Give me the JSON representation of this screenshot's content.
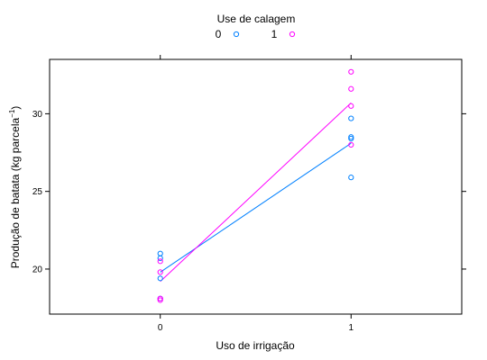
{
  "chart_data": {
    "type": "scatter",
    "title": "",
    "xlabel": "Uso de irrigação",
    "ylabel_main": "Produção de batata (kg parcela",
    "ylabel_sup": "−1",
    "ylabel_close": ")",
    "xlim": [
      -0.58,
      1.58
    ],
    "ylim": [
      17.1,
      33.5
    ],
    "xticks": [
      0,
      1
    ],
    "xtick_labels": [
      "0",
      "1"
    ],
    "yticks": [
      20,
      25,
      30
    ],
    "ytick_labels": [
      "20",
      "25",
      "30"
    ],
    "grid": false,
    "legend": {
      "title": "Use de calagem",
      "placement": "top"
    },
    "series": [
      {
        "name": "0",
        "color": "#0080ff",
        "points": [
          {
            "x": 0,
            "y": 21.0
          },
          {
            "x": 0,
            "y": 20.7
          },
          {
            "x": 0,
            "y": 19.4
          },
          {
            "x": 0,
            "y": 18.1
          },
          {
            "x": 1,
            "y": 29.7
          },
          {
            "x": 1,
            "y": 28.5
          },
          {
            "x": 1,
            "y": 28.4
          },
          {
            "x": 1,
            "y": 25.9
          }
        ],
        "fit_line": [
          {
            "x": 0,
            "y": 19.8
          },
          {
            "x": 1,
            "y": 28.1
          }
        ]
      },
      {
        "name": "1",
        "color": "#ff00ff",
        "points": [
          {
            "x": 0,
            "y": 20.5
          },
          {
            "x": 0,
            "y": 19.8
          },
          {
            "x": 0,
            "y": 18.1
          },
          {
            "x": 0,
            "y": 18.0
          },
          {
            "x": 1,
            "y": 32.7
          },
          {
            "x": 1,
            "y": 31.6
          },
          {
            "x": 1,
            "y": 30.5
          },
          {
            "x": 1,
            "y": 28.0
          }
        ],
        "fit_line": [
          {
            "x": 0,
            "y": 19.2
          },
          {
            "x": 1,
            "y": 30.7
          }
        ]
      }
    ]
  }
}
